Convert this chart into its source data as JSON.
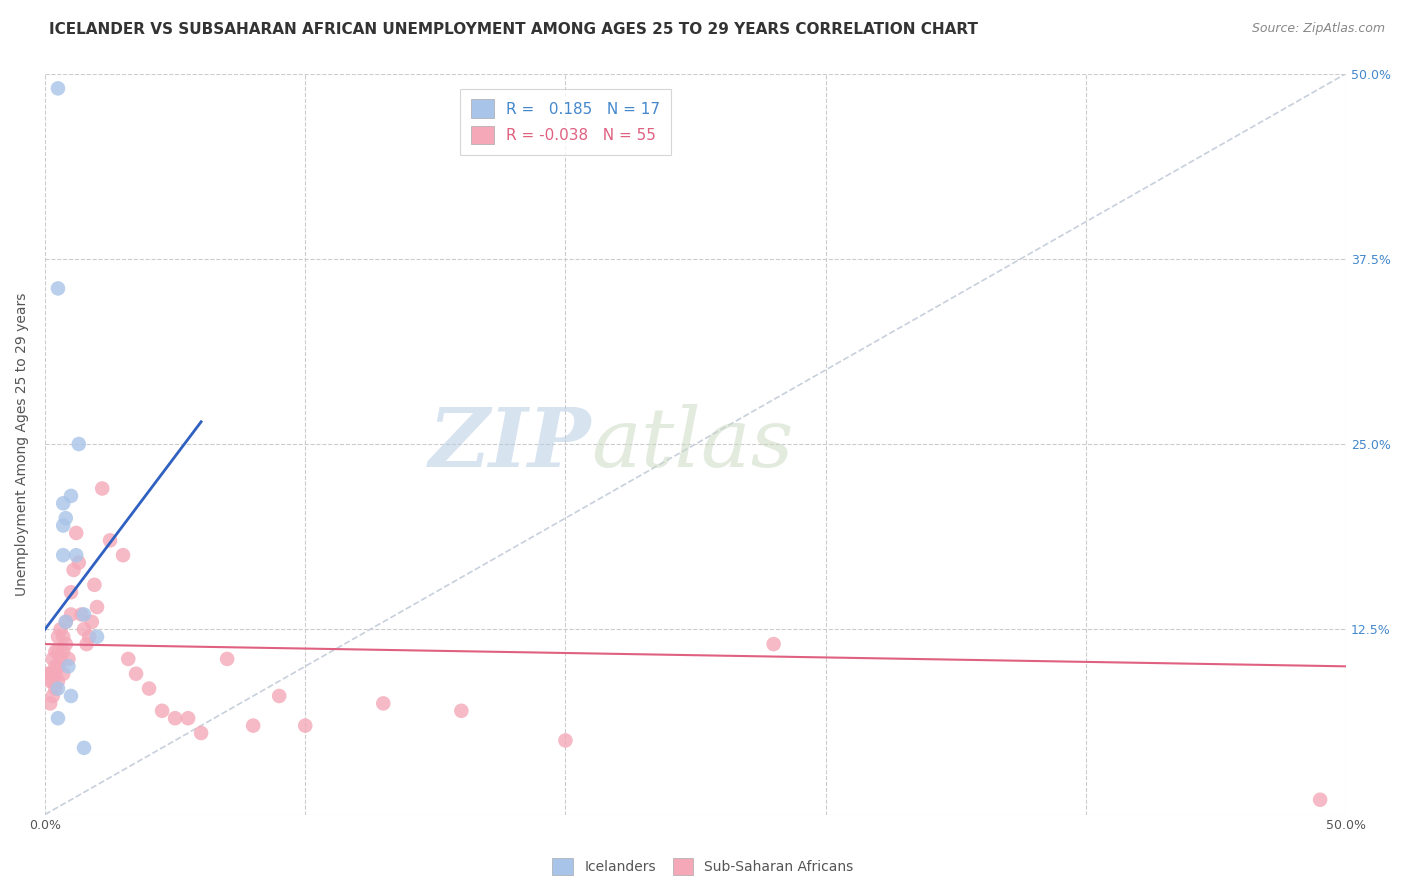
{
  "title": "ICELANDER VS SUBSAHARAN AFRICAN UNEMPLOYMENT AMONG AGES 25 TO 29 YEARS CORRELATION CHART",
  "source": "Source: ZipAtlas.com",
  "ylabel": "Unemployment Among Ages 25 to 29 years",
  "xlim": [
    0.0,
    0.5
  ],
  "ylim": [
    0.0,
    0.5
  ],
  "yticks": [
    0.0,
    0.125,
    0.25,
    0.375,
    0.5
  ],
  "ytick_labels": [
    "",
    "12.5%",
    "25.0%",
    "37.5%",
    "50.0%"
  ],
  "r_blue": 0.185,
  "n_blue": 17,
  "r_pink": -0.038,
  "n_pink": 55,
  "blue_color": "#a8c4e8",
  "pink_color": "#f4a8b8",
  "blue_line_color": "#3060c0",
  "pink_line_color": "#e06080",
  "diagonal_color": "#c8d0dc",
  "watermark_zip": "ZIP",
  "watermark_atlas": "atlas",
  "watermark_color": "#d0d8e8",
  "icelander_x": [
    0.005,
    0.005,
    0.005,
    0.005,
    0.007,
    0.007,
    0.007,
    0.008,
    0.008,
    0.009,
    0.01,
    0.01,
    0.012,
    0.013,
    0.015,
    0.015,
    0.02
  ],
  "icelander_y": [
    0.49,
    0.355,
    0.085,
    0.065,
    0.21,
    0.195,
    0.175,
    0.2,
    0.13,
    0.1,
    0.215,
    0.08,
    0.175,
    0.25,
    0.135,
    0.045,
    0.12
  ],
  "subsaharan_x": [
    0.001,
    0.002,
    0.002,
    0.002,
    0.003,
    0.003,
    0.003,
    0.003,
    0.004,
    0.004,
    0.004,
    0.004,
    0.005,
    0.005,
    0.005,
    0.005,
    0.006,
    0.006,
    0.007,
    0.007,
    0.007,
    0.008,
    0.008,
    0.009,
    0.01,
    0.01,
    0.011,
    0.012,
    0.013,
    0.014,
    0.015,
    0.016,
    0.017,
    0.018,
    0.019,
    0.02,
    0.022,
    0.025,
    0.03,
    0.032,
    0.035,
    0.04,
    0.045,
    0.05,
    0.055,
    0.06,
    0.07,
    0.08,
    0.09,
    0.1,
    0.13,
    0.16,
    0.2,
    0.28,
    0.49
  ],
  "subsaharan_y": [
    0.095,
    0.095,
    0.09,
    0.075,
    0.105,
    0.095,
    0.09,
    0.08,
    0.11,
    0.1,
    0.095,
    0.085,
    0.12,
    0.11,
    0.1,
    0.09,
    0.125,
    0.105,
    0.12,
    0.11,
    0.095,
    0.13,
    0.115,
    0.105,
    0.15,
    0.135,
    0.165,
    0.19,
    0.17,
    0.135,
    0.125,
    0.115,
    0.12,
    0.13,
    0.155,
    0.14,
    0.22,
    0.185,
    0.175,
    0.105,
    0.095,
    0.085,
    0.07,
    0.065,
    0.065,
    0.055,
    0.105,
    0.06,
    0.08,
    0.06,
    0.075,
    0.07,
    0.05,
    0.115,
    0.01
  ],
  "blue_line_x0": 0.0,
  "blue_line_y0": 0.125,
  "blue_line_x1": 0.06,
  "blue_line_y1": 0.265,
  "pink_line_x0": 0.0,
  "pink_line_y0": 0.115,
  "pink_line_x1": 0.5,
  "pink_line_y1": 0.1
}
